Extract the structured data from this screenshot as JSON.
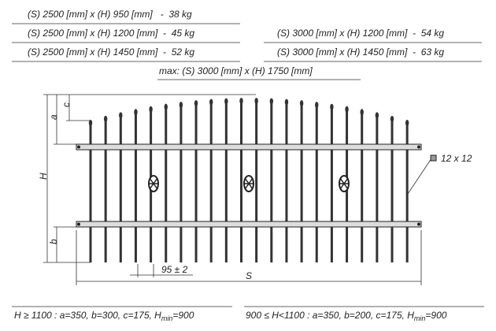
{
  "specs_left": [
    "(S) 2500 [mm] x (H) 950 [mm]   -  38 kg",
    "(S) 2500 [mm] x (H) 1200 [mm]  -  45 kg",
    "(S) 2500 [mm] x (H) 1450 [mm]  -  52 kg"
  ],
  "specs_right": [
    "(S) 3000 [mm] x (H) 1200 [mm]  -  54 kg",
    "(S) 3000 [mm] x (H) 1450 [mm]  -  63 kg"
  ],
  "max": "max: (S) 3000 [mm] x (H) 1750 [mm]",
  "dimensions": {
    "a": "a",
    "c": "c",
    "H": "H",
    "b": "b",
    "spacing": "95 ± 2",
    "S": "S",
    "profile": "12 x 12"
  },
  "footer": {
    "left": {
      "prefix": "H ≥ 1100 : a=350, b=300, c=175, H",
      "sub": "min",
      "suffix": "=900"
    },
    "right": {
      "prefix": "900 ≤ H<1100 : a=350, b=200, c=175, H",
      "sub": "min",
      "suffix": "=900"
    }
  }
}
